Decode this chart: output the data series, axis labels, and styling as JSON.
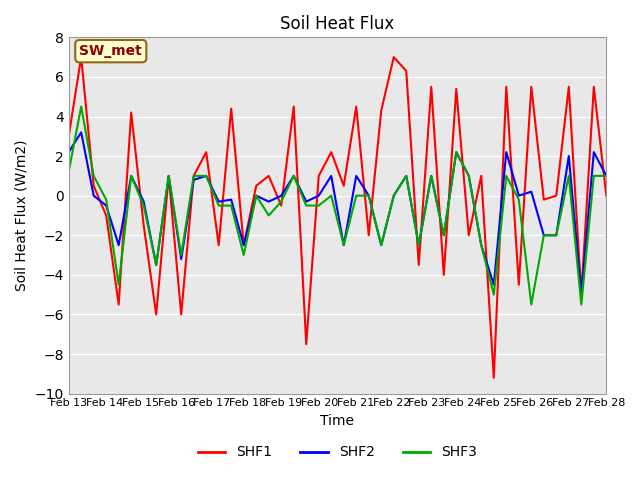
{
  "title": "Soil Heat Flux",
  "xlabel": "Time",
  "ylabel": "Soil Heat Flux (W/m2)",
  "ylim": [
    -10,
    8
  ],
  "yticks": [
    -10,
    -8,
    -6,
    -4,
    -2,
    0,
    2,
    4,
    6,
    8
  ],
  "annotation": "SW_met",
  "bg_color": "#e8e8e8",
  "plot_bg": "#e8e8e8",
  "shf1_color": "#ff0000",
  "shf2_color": "#0000ff",
  "shf3_color": "#00aa00",
  "linewidth": 1.5,
  "dates": [
    0,
    1,
    2,
    3,
    4,
    5,
    6,
    7,
    8,
    9,
    10,
    11,
    12,
    13,
    14,
    15
  ],
  "date_labels": [
    "Feb 13",
    "Feb 14",
    "Feb 15",
    "Feb 16",
    "Feb 17",
    "Feb 18",
    "Feb 19",
    "Feb 20",
    "Feb 21",
    "Feb 22",
    "Feb 23",
    "Feb 24",
    "Feb 25",
    "Feb 26",
    "Feb 27",
    "Feb 28"
  ],
  "shf1": [
    3.0,
    7.0,
    0.5,
    -1.0,
    -5.5,
    4.2,
    -1.5,
    -6.0,
    1.0,
    -6.0,
    1.0,
    2.2,
    -2.5,
    4.4,
    -2.5,
    0.5,
    1.0,
    -0.5,
    4.5,
    -7.5,
    1.0,
    2.2,
    0.5,
    4.5,
    -2.0,
    4.3,
    7.0,
    6.3,
    -3.5,
    5.5,
    -4.0,
    5.4,
    -2.0,
    1.0,
    -9.2,
    5.5,
    -4.5,
    5.5,
    -0.2,
    0.0,
    5.5,
    -5.0,
    5.5,
    0.0
  ],
  "shf2": [
    2.2,
    3.2,
    0.0,
    -0.5,
    -2.5,
    1.0,
    -0.3,
    -3.5,
    1.0,
    -3.2,
    0.8,
    1.0,
    -0.3,
    -0.2,
    -2.5,
    0.0,
    -0.3,
    0.0,
    1.0,
    -0.3,
    0.0,
    1.0,
    -2.5,
    1.0,
    0.0,
    -2.5,
    0.0,
    1.0,
    -2.5,
    1.0,
    -2.0,
    2.2,
    1.0,
    -2.5,
    -4.5,
    2.2,
    0.0,
    0.2,
    -2.0,
    -2.0,
    2.0,
    -5.0,
    2.2,
    1.0
  ],
  "shf3": [
    1.2,
    4.5,
    1.0,
    -0.2,
    -4.5,
    1.0,
    -0.5,
    -3.5,
    1.0,
    -3.0,
    1.0,
    1.0,
    -0.5,
    -0.5,
    -3.0,
    0.0,
    -1.0,
    -0.3,
    1.0,
    -0.5,
    -0.5,
    0.0,
    -2.5,
    0.0,
    0.0,
    -2.5,
    0.0,
    1.0,
    -2.5,
    1.0,
    -2.0,
    2.2,
    1.0,
    -2.5,
    -5.0,
    1.0,
    -0.2,
    -5.5,
    -2.0,
    -2.0,
    1.0,
    -5.5,
    1.0,
    1.0
  ]
}
